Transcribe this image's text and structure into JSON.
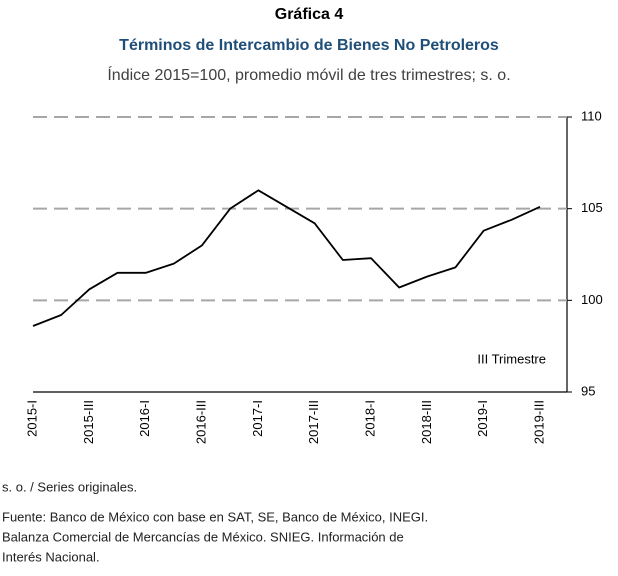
{
  "chart_data": {
    "type": "line",
    "title": "Gráfica 4",
    "subtitle": "Términos de Intercambio de Bienes No Petroleros",
    "subtitle2": "Índice 2015=100, promedio móvil de tres trimestres; s. o.",
    "annotation": "III Trimestre",
    "categories": [
      "2015-I",
      null,
      "2015-III",
      null,
      "2016-I",
      null,
      "2016-III",
      null,
      "2017-I",
      null,
      "2017-III",
      null,
      "2018-I",
      null,
      "2018-III",
      null,
      "2019-I",
      null,
      "2019-III"
    ],
    "series": [
      {
        "name": "Términos de Intercambio",
        "color": "#000000",
        "values": [
          98.6,
          99.2,
          100.6,
          101.5,
          101.5,
          102.0,
          103.0,
          105.0,
          106.0,
          105.1,
          104.2,
          102.2,
          102.3,
          100.7,
          101.3,
          101.8,
          103.8,
          104.4,
          105.1
        ]
      }
    ],
    "ylim": [
      95,
      110
    ],
    "yticks": [
      95,
      100,
      105,
      110
    ],
    "grid": true,
    "yaxis_side": "right",
    "notes": [
      "s. o. / Series originales.",
      "Fuente: Banco de México con base en SAT, SE, Banco de México, INEGI.",
      "Balanza Comercial de Mercancías de México. SNIEG. Información de",
      "Interés Nacional."
    ]
  }
}
